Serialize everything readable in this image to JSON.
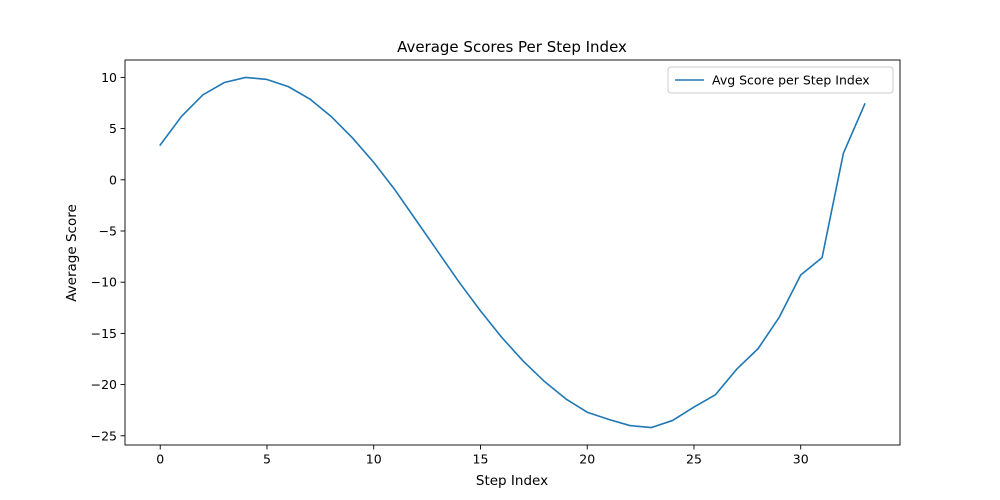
{
  "chart_data": {
    "type": "line",
    "title": "Average Scores Per Step Index",
    "xlabel": "Step Index",
    "ylabel": "Average Score",
    "xlim": [
      -1.65,
      34.65
    ],
    "ylim": [
      -25.9,
      11.7
    ],
    "xticks": [
      0,
      5,
      10,
      15,
      20,
      25,
      30
    ],
    "yticks": [
      10,
      5,
      0,
      -5,
      -10,
      -15,
      -20,
      -25
    ],
    "grid": false,
    "legend_position": "top-right",
    "colors": {
      "series": "#1f77b4",
      "axes": "#000000",
      "legend_border": "#cccccc"
    },
    "series": [
      {
        "name": "Avg Score per Step Index",
        "x": [
          0,
          1,
          2,
          3,
          4,
          5,
          6,
          7,
          8,
          9,
          10,
          11,
          12,
          13,
          14,
          15,
          16,
          17,
          18,
          19,
          20,
          21,
          22,
          23,
          24,
          25,
          26,
          27,
          28,
          29,
          30,
          31,
          32,
          33
        ],
        "y": [
          3.4,
          6.2,
          8.3,
          9.5,
          10.0,
          9.8,
          9.1,
          7.9,
          6.2,
          4.1,
          1.7,
          -1.0,
          -4.0,
          -7.0,
          -10.0,
          -12.8,
          -15.4,
          -17.7,
          -19.7,
          -21.4,
          -22.7,
          -23.4,
          -24.0,
          -24.2,
          -23.5,
          -22.2,
          -21.0,
          -18.5,
          -16.5,
          -13.4,
          -9.3,
          -7.6,
          2.6,
          7.4
        ]
      }
    ]
  }
}
